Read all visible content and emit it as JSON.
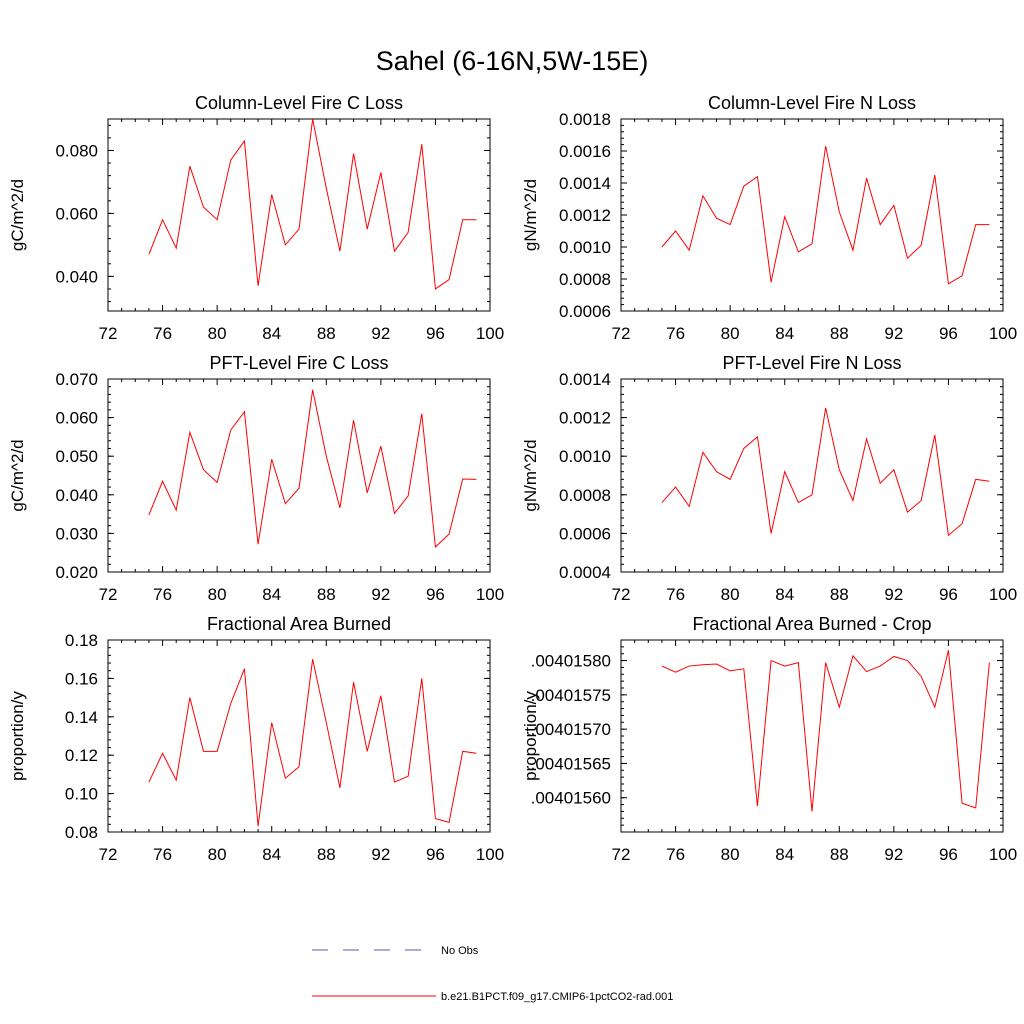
{
  "figure": {
    "title": "Sahel (6-16N,5W-15E)"
  },
  "legend": {
    "entries": [
      {
        "label": "No Obs",
        "color": "#5a5aa8",
        "style": "dashed"
      },
      {
        "label": "b.e21.B1PCT.f09_g17.CMIP6-1pctCO2-rad.001",
        "color": "#ff0000",
        "style": "solid"
      }
    ]
  },
  "chart_data": [
    {
      "type": "line",
      "title": "Column-Level Fire C Loss",
      "ylabel": "gC/m^2/d",
      "xlim": [
        72,
        100
      ],
      "ylim": [
        0.029,
        0.09
      ],
      "xticks": [
        72,
        76,
        80,
        84,
        88,
        92,
        96,
        100
      ],
      "xtick_labels": [
        "72",
        "76",
        "80",
        "84",
        "88",
        "92",
        "96",
        "100"
      ],
      "yticks": [
        0.04,
        0.06,
        0.08
      ],
      "ytick_labels": [
        "0.040",
        "0.060",
        "0.080"
      ],
      "series": [
        {
          "name": "b.e21.B1PCT.f09_g17.CMIP6-1pctCO2-rad.001",
          "color": "#ff0000",
          "x": [
            75,
            76,
            77,
            78,
            79,
            80,
            81,
            82,
            83,
            84,
            85,
            86,
            87,
            88,
            89,
            90,
            91,
            92,
            93,
            94,
            95,
            96,
            97,
            98,
            99
          ],
          "y": [
            0.047,
            0.058,
            0.049,
            0.075,
            0.062,
            0.058,
            0.077,
            0.083,
            0.037,
            0.066,
            0.05,
            0.055,
            0.09,
            0.068,
            0.048,
            0.079,
            0.055,
            0.073,
            0.048,
            0.054,
            0.082,
            0.036,
            0.039,
            0.058,
            0.058
          ]
        }
      ]
    },
    {
      "type": "line",
      "title": "Column-Level Fire N Loss",
      "ylabel": "gN/m^2/d",
      "xlim": [
        72,
        100
      ],
      "ylim": [
        0.0006,
        0.0018
      ],
      "xticks": [
        72,
        76,
        80,
        84,
        88,
        92,
        96,
        100
      ],
      "xtick_labels": [
        "72",
        "76",
        "80",
        "84",
        "88",
        "92",
        "96",
        "100"
      ],
      "yticks": [
        0.0006,
        0.0008,
        0.001,
        0.0012,
        0.0014,
        0.0016,
        0.0018
      ],
      "ytick_labels": [
        "0.0006",
        "0.0008",
        "0.0010",
        "0.0012",
        "0.0014",
        "0.0016",
        "0.0018"
      ],
      "series": [
        {
          "name": "b.e21.B1PCT.f09_g17.CMIP6-1pctCO2-rad.001",
          "color": "#ff0000",
          "x": [
            75,
            76,
            77,
            78,
            79,
            80,
            81,
            82,
            83,
            84,
            85,
            86,
            87,
            88,
            89,
            90,
            91,
            92,
            93,
            94,
            95,
            96,
            97,
            98,
            99
          ],
          "y": [
            0.001,
            0.0011,
            0.00098,
            0.00132,
            0.00118,
            0.00114,
            0.00138,
            0.00144,
            0.00078,
            0.00119,
            0.00097,
            0.00102,
            0.00163,
            0.00122,
            0.00098,
            0.00143,
            0.00114,
            0.00126,
            0.00093,
            0.00101,
            0.00145,
            0.00077,
            0.00082,
            0.00114,
            0.00114
          ]
        }
      ]
    },
    {
      "type": "line",
      "title": "PFT-Level Fire C Loss",
      "ylabel": "gC/m^2/d",
      "xlim": [
        72,
        100
      ],
      "ylim": [
        0.02,
        0.07
      ],
      "xticks": [
        72,
        76,
        80,
        84,
        88,
        92,
        96,
        100
      ],
      "xtick_labels": [
        "72",
        "76",
        "80",
        "84",
        "88",
        "92",
        "96",
        "100"
      ],
      "yticks": [
        0.02,
        0.03,
        0.04,
        0.05,
        0.06,
        0.07
      ],
      "ytick_labels": [
        "0.020",
        "0.030",
        "0.040",
        "0.050",
        "0.060",
        "0.070"
      ],
      "series": [
        {
          "name": "b.e21.B1PCT.f09_g17.CMIP6-1pctCO2-rad.001",
          "color": "#ff0000",
          "x": [
            75,
            76,
            77,
            78,
            79,
            80,
            81,
            82,
            83,
            84,
            85,
            86,
            87,
            88,
            89,
            90,
            91,
            92,
            93,
            94,
            95,
            96,
            97,
            98,
            99
          ],
          "y": [
            0.0348,
            0.0435,
            0.036,
            0.0562,
            0.0465,
            0.0432,
            0.0568,
            0.0615,
            0.0272,
            0.0492,
            0.0377,
            0.0417,
            0.0672,
            0.05,
            0.0366,
            0.0593,
            0.0405,
            0.0526,
            0.0352,
            0.0397,
            0.061,
            0.0265,
            0.0298,
            0.0441,
            0.044
          ]
        }
      ]
    },
    {
      "type": "line",
      "title": "PFT-Level Fire N Loss",
      "ylabel": "gN/m^2/d",
      "xlim": [
        72,
        100
      ],
      "ylim": [
        0.0004,
        0.0014
      ],
      "xticks": [
        72,
        76,
        80,
        84,
        88,
        92,
        96,
        100
      ],
      "xtick_labels": [
        "72",
        "76",
        "80",
        "84",
        "88",
        "92",
        "96",
        "100"
      ],
      "yticks": [
        0.0004,
        0.0006,
        0.0008,
        0.001,
        0.0012,
        0.0014
      ],
      "ytick_labels": [
        "0.0004",
        "0.0006",
        "0.0008",
        "0.0010",
        "0.0012",
        "0.0014"
      ],
      "series": [
        {
          "name": "b.e21.B1PCT.f09_g17.CMIP6-1pctCO2-rad.001",
          "color": "#ff0000",
          "x": [
            75,
            76,
            77,
            78,
            79,
            80,
            81,
            82,
            83,
            84,
            85,
            86,
            87,
            88,
            89,
            90,
            91,
            92,
            93,
            94,
            95,
            96,
            97,
            98,
            99
          ],
          "y": [
            0.00076,
            0.00084,
            0.00074,
            0.00102,
            0.00092,
            0.00088,
            0.00104,
            0.0011,
            0.0006,
            0.00092,
            0.00076,
            0.0008,
            0.00125,
            0.00093,
            0.00077,
            0.00109,
            0.00086,
            0.00093,
            0.00071,
            0.00077,
            0.00111,
            0.00059,
            0.00065,
            0.00088,
            0.00087
          ]
        }
      ]
    },
    {
      "type": "line",
      "title": "Fractional Area Burned",
      "ylabel": "proportion/y",
      "xlim": [
        72,
        100
      ],
      "ylim": [
        0.08,
        0.18
      ],
      "xticks": [
        72,
        76,
        80,
        84,
        88,
        92,
        96,
        100
      ],
      "xtick_labels": [
        "72",
        "76",
        "80",
        "84",
        "88",
        "92",
        "96",
        "100"
      ],
      "yticks": [
        0.08,
        0.1,
        0.12,
        0.14,
        0.16,
        0.18
      ],
      "ytick_labels": [
        "0.08",
        "0.10",
        "0.12",
        "0.14",
        "0.16",
        "0.18"
      ],
      "series": [
        {
          "name": "b.e21.B1PCT.f09_g17.CMIP6-1pctCO2-rad.001",
          "color": "#ff0000",
          "x": [
            75,
            76,
            77,
            78,
            79,
            80,
            81,
            82,
            83,
            84,
            85,
            86,
            87,
            88,
            89,
            90,
            91,
            92,
            93,
            94,
            95,
            96,
            97,
            98,
            99
          ],
          "y": [
            0.106,
            0.121,
            0.107,
            0.15,
            0.122,
            0.122,
            0.147,
            0.165,
            0.083,
            0.137,
            0.108,
            0.114,
            0.17,
            0.137,
            0.103,
            0.158,
            0.122,
            0.151,
            0.106,
            0.109,
            0.16,
            0.087,
            0.085,
            0.122,
            0.121
          ]
        }
      ]
    },
    {
      "type": "line",
      "title": "Fractional Area Burned - Crop",
      "ylabel": "proportion/y",
      "xlim": [
        72,
        100
      ],
      "ylim": [
        0.00401555,
        0.00401583
      ],
      "xticks": [
        72,
        76,
        80,
        84,
        88,
        92,
        96,
        100
      ],
      "xtick_labels": [
        "72",
        "76",
        "80",
        "84",
        "88",
        "92",
        "96",
        "100"
      ],
      "yticks": [
        0.0040156,
        0.00401565,
        0.0040157,
        0.00401575,
        0.0040158
      ],
      "ytick_labels": [
        ".00401560",
        ".00401565",
        ".00401570",
        ".00401575",
        ".00401580"
      ],
      "series": [
        {
          "name": "b.e21.B1PCT.f09_g17.CMIP6-1pctCO2-rad.001",
          "color": "#ff0000",
          "x": [
            75,
            76,
            77,
            78,
            79,
            80,
            81,
            82,
            83,
            84,
            85,
            86,
            87,
            88,
            89,
            90,
            91,
            92,
            93,
            94,
            95,
            96,
            97,
            98,
            99
          ],
          "y": [
            0.004015792,
            0.004015783,
            0.004015792,
            0.004015794,
            0.004015795,
            0.004015785,
            0.004015788,
            0.004015588,
            0.0040158,
            0.004015792,
            0.004015797,
            0.00401558,
            0.004015797,
            0.004015732,
            0.004015807,
            0.004015784,
            0.004015792,
            0.004015806,
            0.0040158,
            0.004015777,
            0.004015732,
            0.004015815,
            0.004015592,
            0.004015585,
            0.004015797
          ]
        }
      ]
    }
  ]
}
